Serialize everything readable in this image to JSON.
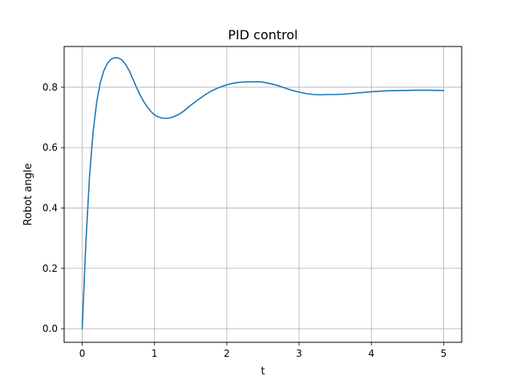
{
  "chart_data": {
    "type": "line",
    "title": "PID control",
    "xlabel": "t",
    "ylabel": "Robot angle",
    "xlim": [
      -0.25,
      5.25
    ],
    "ylim": [
      -0.045,
      0.935
    ],
    "xticks": [
      0,
      1,
      2,
      3,
      4,
      5
    ],
    "xtick_labels": [
      "0",
      "1",
      "2",
      "3",
      "4",
      "5"
    ],
    "yticks": [
      0.0,
      0.2,
      0.4,
      0.6,
      0.8
    ],
    "ytick_labels": [
      "0.0",
      "0.2",
      "0.4",
      "0.6",
      "0.8"
    ],
    "grid": true,
    "series": [
      {
        "color": "#1f77b4",
        "x": [
          0,
          0.05,
          0.1,
          0.15,
          0.2,
          0.25,
          0.3,
          0.35,
          0.4,
          0.45,
          0.5,
          0.55,
          0.6,
          0.65,
          0.7,
          0.75,
          0.8,
          0.85,
          0.9,
          0.95,
          1.0,
          1.05,
          1.1,
          1.15,
          1.2,
          1.25,
          1.3,
          1.35,
          1.4,
          1.5,
          1.6,
          1.7,
          1.8,
          1.9,
          2.0,
          2.1,
          2.2,
          2.3,
          2.4,
          2.45,
          2.5,
          2.6,
          2.7,
          2.8,
          2.9,
          3.0,
          3.1,
          3.2,
          3.3,
          3.4,
          3.5,
          3.6,
          3.7,
          3.8,
          3.9,
          4.0,
          4.2,
          4.4,
          4.6,
          4.8,
          5.0
        ],
        "y": [
          0.0,
          0.28,
          0.5,
          0.65,
          0.75,
          0.815,
          0.855,
          0.88,
          0.893,
          0.898,
          0.897,
          0.89,
          0.876,
          0.855,
          0.828,
          0.8,
          0.775,
          0.753,
          0.735,
          0.72,
          0.708,
          0.702,
          0.698,
          0.697,
          0.698,
          0.701,
          0.706,
          0.712,
          0.72,
          0.74,
          0.758,
          0.775,
          0.789,
          0.8,
          0.808,
          0.814,
          0.817,
          0.818,
          0.818,
          0.818,
          0.817,
          0.812,
          0.806,
          0.798,
          0.79,
          0.784,
          0.779,
          0.776,
          0.775,
          0.776,
          0.776,
          0.777,
          0.779,
          0.781,
          0.783,
          0.785,
          0.788,
          0.789,
          0.79,
          0.79,
          0.789
        ]
      }
    ]
  }
}
